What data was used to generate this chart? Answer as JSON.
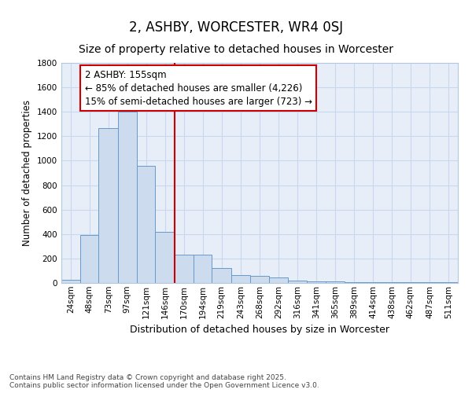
{
  "title1": "2, ASHBY, WORCESTER, WR4 0SJ",
  "title2": "Size of property relative to detached houses in Worcester",
  "xlabel": "Distribution of detached houses by size in Worcester",
  "ylabel": "Number of detached properties",
  "bin_labels": [
    "24sqm",
    "48sqm",
    "73sqm",
    "97sqm",
    "121sqm",
    "146sqm",
    "170sqm",
    "194sqm",
    "219sqm",
    "243sqm",
    "268sqm",
    "292sqm",
    "316sqm",
    "341sqm",
    "365sqm",
    "389sqm",
    "414sqm",
    "438sqm",
    "462sqm",
    "487sqm",
    "511sqm"
  ],
  "bin_edges": [
    12,
    36,
    60,
    85,
    109,
    133,
    158,
    182,
    206,
    231,
    255,
    280,
    304,
    328,
    353,
    377,
    401,
    426,
    450,
    474,
    499,
    523
  ],
  "values": [
    25,
    390,
    1265,
    1400,
    960,
    420,
    230,
    230,
    120,
    65,
    60,
    45,
    20,
    15,
    10,
    8,
    8,
    5,
    8,
    5,
    5
  ],
  "bar_facecolor": "#ccdcee",
  "bar_edgecolor": "#6699cc",
  "grid_color": "#c8d8ee",
  "background_color": "#e8eef8",
  "vline_x": 158,
  "vline_color": "#cc0000",
  "annotation_text": "2 ASHBY: 155sqm\n← 85% of detached houses are smaller (4,226)\n15% of semi-detached houses are larger (723) →",
  "annotation_box_edgecolor": "#cc0000",
  "annotation_box_facecolor": "white",
  "footer_text": "Contains HM Land Registry data © Crown copyright and database right 2025.\nContains public sector information licensed under the Open Government Licence v3.0.",
  "ylim": [
    0,
    1800
  ],
  "yticks": [
    0,
    200,
    400,
    600,
    800,
    1000,
    1200,
    1400,
    1600,
    1800
  ],
  "title1_fontsize": 12,
  "title2_fontsize": 10,
  "xlabel_fontsize": 9,
  "ylabel_fontsize": 8.5,
  "tick_fontsize": 7.5,
  "footer_fontsize": 6.5,
  "annotation_fontsize": 8.5
}
